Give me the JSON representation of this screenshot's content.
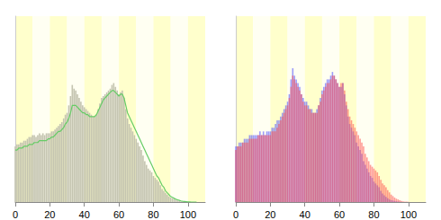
{
  "chart_data": [
    {
      "type": "bar",
      "x": [
        0,
        1,
        2,
        3,
        4,
        5,
        6,
        7,
        8,
        9,
        10,
        11,
        12,
        13,
        14,
        15,
        16,
        17,
        18,
        19,
        20,
        21,
        22,
        23,
        24,
        25,
        26,
        27,
        28,
        29,
        30,
        31,
        32,
        33,
        34,
        35,
        36,
        37,
        38,
        39,
        40,
        41,
        42,
        43,
        44,
        45,
        46,
        47,
        48,
        49,
        50,
        51,
        52,
        53,
        54,
        55,
        56,
        57,
        58,
        59,
        60,
        61,
        62,
        63,
        64,
        65,
        66,
        67,
        68,
        69,
        70,
        71,
        72,
        73,
        74,
        75,
        76,
        77,
        78,
        79,
        80,
        81,
        82,
        83,
        84,
        85,
        86,
        87,
        88,
        89,
        90,
        91,
        92,
        93,
        94,
        95,
        96,
        97,
        98,
        99,
        100,
        101,
        102,
        103,
        104,
        105
      ],
      "series": [
        {
          "type": "bar",
          "color": "#c4c4b0",
          "values": [
            30,
            31,
            31,
            32,
            32,
            33,
            33,
            34,
            35,
            35,
            36,
            36,
            35,
            36,
            37,
            36,
            37,
            36,
            37,
            37,
            37,
            38,
            38,
            39,
            40,
            41,
            42,
            43,
            45,
            47,
            48,
            52,
            57,
            63,
            61,
            60,
            58,
            56,
            54,
            52,
            51,
            50,
            49,
            48,
            47,
            46,
            46,
            47,
            50,
            53,
            56,
            57,
            58,
            59,
            60,
            61,
            63,
            64,
            62,
            60,
            58,
            59,
            60,
            56,
            50,
            45,
            42,
            40,
            38,
            36,
            34,
            32,
            30,
            28,
            25,
            22,
            20,
            18,
            17,
            16,
            14,
            13,
            12,
            11,
            9,
            7,
            6,
            5,
            4,
            3,
            2.4,
            2,
            1.6,
            1.2,
            0.9,
            0.6,
            0.4,
            0.3,
            0.2,
            0.1,
            0.1,
            0,
            0,
            0,
            0,
            0
          ]
        },
        {
          "type": "line",
          "color": "#66cc66",
          "values": [
            28,
            28,
            29,
            29,
            29,
            30,
            30,
            30,
            31,
            31,
            31,
            32,
            32,
            32,
            33,
            33,
            33,
            33,
            33,
            34,
            34,
            35,
            35,
            36,
            37,
            38,
            38,
            39,
            40,
            42,
            43,
            45,
            48,
            52,
            52,
            52,
            51,
            50,
            49,
            48,
            48,
            47,
            47,
            46,
            46,
            46,
            46,
            47,
            49,
            51,
            53,
            55,
            56,
            57,
            58,
            59,
            60,
            60,
            59,
            58,
            57,
            58,
            58,
            56,
            52,
            48,
            46,
            44,
            42,
            40,
            38,
            36,
            34,
            32,
            30,
            28,
            26,
            24,
            22,
            20,
            18,
            16,
            14,
            13,
            11,
            9,
            8,
            6,
            5,
            4,
            3,
            2.5,
            2,
            1.5,
            1.2,
            0.9,
            0.6,
            0.4,
            0.3,
            0.2,
            0.1,
            0.1,
            0,
            0,
            0,
            0
          ]
        }
      ],
      "xlim": [
        0,
        110
      ],
      "xticks": [
        0,
        20,
        40,
        60,
        80,
        100
      ],
      "ylim": [
        0,
        100
      ],
      "tick_labels": "x"
    },
    {
      "type": "bar",
      "x": [
        0,
        1,
        2,
        3,
        4,
        5,
        6,
        7,
        8,
        9,
        10,
        11,
        12,
        13,
        14,
        15,
        16,
        17,
        18,
        19,
        20,
        21,
        22,
        23,
        24,
        25,
        26,
        27,
        28,
        29,
        30,
        31,
        32,
        33,
        34,
        35,
        36,
        37,
        38,
        39,
        40,
        41,
        42,
        43,
        44,
        45,
        46,
        47,
        48,
        49,
        50,
        51,
        52,
        53,
        54,
        55,
        56,
        57,
        58,
        59,
        60,
        61,
        62,
        63,
        64,
        65,
        66,
        67,
        68,
        69,
        70,
        71,
        72,
        73,
        74,
        75,
        76,
        77,
        78,
        79,
        80,
        81,
        82,
        83,
        84,
        85,
        86,
        87,
        88,
        89,
        90,
        91,
        92,
        93,
        94,
        95,
        96,
        97,
        98,
        99,
        100,
        101,
        102,
        103,
        104,
        105
      ],
      "series": [
        {
          "type": "bar",
          "color": "#4a4aff",
          "values": [
            15,
            15,
            16,
            16,
            16,
            17,
            17,
            17,
            18,
            18,
            18,
            18,
            18,
            18,
            19,
            18,
            19,
            18,
            19,
            19,
            19,
            20,
            20,
            21,
            22,
            22,
            23,
            24,
            25,
            26,
            27,
            29,
            33,
            36,
            34,
            33,
            32,
            31,
            29,
            28,
            27,
            27,
            26,
            25,
            25,
            24,
            24,
            25,
            26,
            28,
            30,
            31,
            32,
            33,
            33,
            34,
            35,
            34,
            33,
            32,
            31,
            31,
            32,
            29,
            26,
            23,
            21,
            20,
            19,
            18,
            16,
            15,
            14,
            13,
            11,
            10,
            9,
            8,
            7,
            6.5,
            5.5,
            5,
            4.5,
            4,
            3,
            2.3,
            1.8,
            1.4,
            1,
            0.7,
            0.5,
            0.4,
            0.3,
            0.2,
            0.15,
            0.1,
            0.05,
            0,
            0,
            0,
            0,
            0,
            0,
            0,
            0,
            0
          ]
        },
        {
          "type": "bar",
          "color": "#ff4a4a",
          "values": [
            14,
            15,
            15,
            15,
            16,
            16,
            16,
            16,
            17,
            17,
            17,
            17,
            17,
            18,
            18,
            18,
            18,
            18,
            18,
            18,
            18,
            19,
            19,
            19,
            20,
            21,
            22,
            23,
            24,
            25,
            26,
            28,
            31,
            34,
            33,
            32,
            31,
            30,
            29,
            27,
            26,
            26,
            25,
            25,
            24,
            24,
            24,
            24,
            26,
            27,
            29,
            30,
            31,
            32,
            32,
            33,
            34,
            34,
            33,
            32,
            31,
            32,
            32,
            30,
            27,
            25,
            23,
            22,
            21,
            20,
            19,
            18,
            17,
            16,
            15,
            13,
            12,
            11,
            10,
            9.5,
            9,
            8.5,
            8,
            7,
            6,
            5,
            4.5,
            4,
            3.2,
            2.6,
            2,
            1.6,
            1.2,
            0.9,
            0.7,
            0.5,
            0.3,
            0.2,
            0.1,
            0.1,
            0.05,
            0,
            0,
            0,
            0,
            0
          ]
        }
      ],
      "xlim": [
        0,
        110
      ],
      "xticks": [
        0,
        20,
        40,
        60,
        80,
        100
      ],
      "ylim": [
        0,
        50
      ],
      "tick_labels": "x"
    }
  ]
}
